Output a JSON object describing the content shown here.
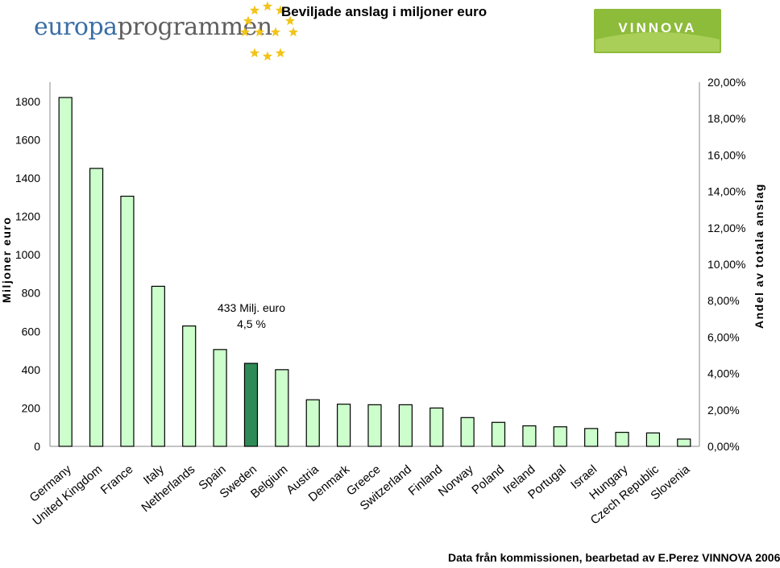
{
  "header": {
    "logo_part1": "europa",
    "logo_part2": "programmen",
    "brand_logo_text": "VINNOVA"
  },
  "colors": {
    "bar_fill": "#ccffcc",
    "bar_highlight": "#2e8b57",
    "bar_stroke": "#000000",
    "star_color": "#f2c418",
    "brand_green": "#8dbb3a"
  },
  "footer": {
    "source": "Data från kommissionen, bearbetad av E.Perez VINNOVA 2006"
  },
  "chart_data": {
    "type": "bar",
    "title": "Beviljade anslag i miljoner euro",
    "ylabel": "Miljoner euro",
    "y2label": "Andel av totala anslag",
    "ylim": [
      0,
      1900
    ],
    "yticks": [
      0,
      200,
      400,
      600,
      800,
      1000,
      1200,
      1400,
      1600,
      1800
    ],
    "y2lim": [
      0,
      0.2
    ],
    "y2ticks": [
      "0,00%",
      "2,00%",
      "4,00%",
      "6,00%",
      "8,00%",
      "10,00%",
      "12,00%",
      "14,00%",
      "16,00%",
      "18,00%",
      "20,00%"
    ],
    "grid": false,
    "categories": [
      "Germany",
      "United Kingdom",
      "France",
      "Italy",
      "Netherlands",
      "Spain",
      "Sweden",
      "Belgium",
      "Austria",
      "Denmark",
      "Greece",
      "Switzerland",
      "Finland",
      "Norway",
      "Poland",
      "Ireland",
      "Portugal",
      "Israel",
      "Hungary",
      "Czech Republic",
      "Slovenia"
    ],
    "values": [
      1820,
      1450,
      1305,
      835,
      628,
      505,
      433,
      400,
      243,
      220,
      217,
      217,
      200,
      150,
      125,
      107,
      102,
      93,
      73,
      70,
      38
    ],
    "highlight_index": 6,
    "annotation": {
      "line1": "433 Milj. euro",
      "line2": "4,5 %"
    }
  }
}
